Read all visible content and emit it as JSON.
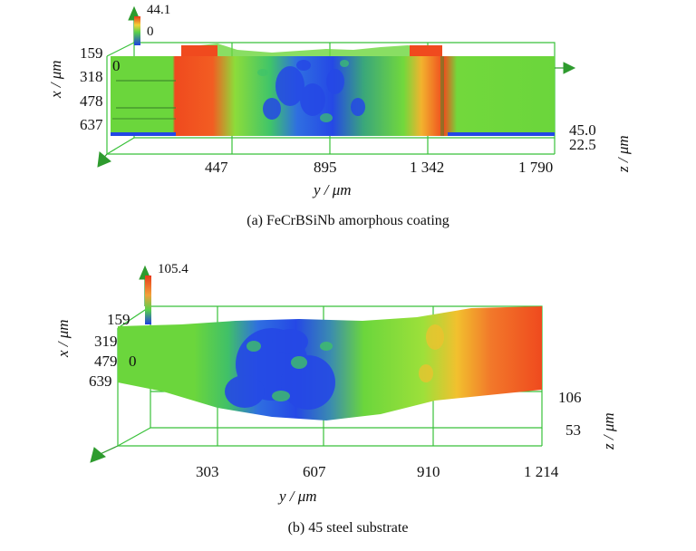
{
  "figure_a": {
    "caption": "(a) FeCrBSiNb amorphous coating",
    "colorbar": {
      "max": "44.1",
      "min": "0"
    },
    "x_axis_title": "x / μm",
    "x_ticks": [
      "159",
      "318",
      "478",
      "637"
    ],
    "x_origin": "0",
    "y_axis_title": "y / μm",
    "y_ticks": [
      "447",
      "895",
      "1 342",
      "1 790"
    ],
    "z_axis_title": "z / μm",
    "z_ticks": [
      "45.0",
      "22.5"
    ]
  },
  "figure_b": {
    "caption": "(b) 45 steel substrate",
    "colorbar": {
      "max": "105.4"
    },
    "x_axis_title": "x / μm",
    "x_ticks": [
      "159",
      "319",
      "479",
      "639"
    ],
    "x_origin": "0",
    "y_axis_title": "y / μm",
    "y_ticks": [
      "303",
      "607",
      "910",
      "1 214"
    ],
    "z_axis_title": "z / μm",
    "z_ticks": [
      "106",
      "53"
    ]
  },
  "colors": {
    "grid": "#39c13a",
    "surface_green": "#66d23a",
    "surface_blue": "#2346e6",
    "surface_red": "#ef4a1e",
    "arrow": "#2e9b2e"
  }
}
